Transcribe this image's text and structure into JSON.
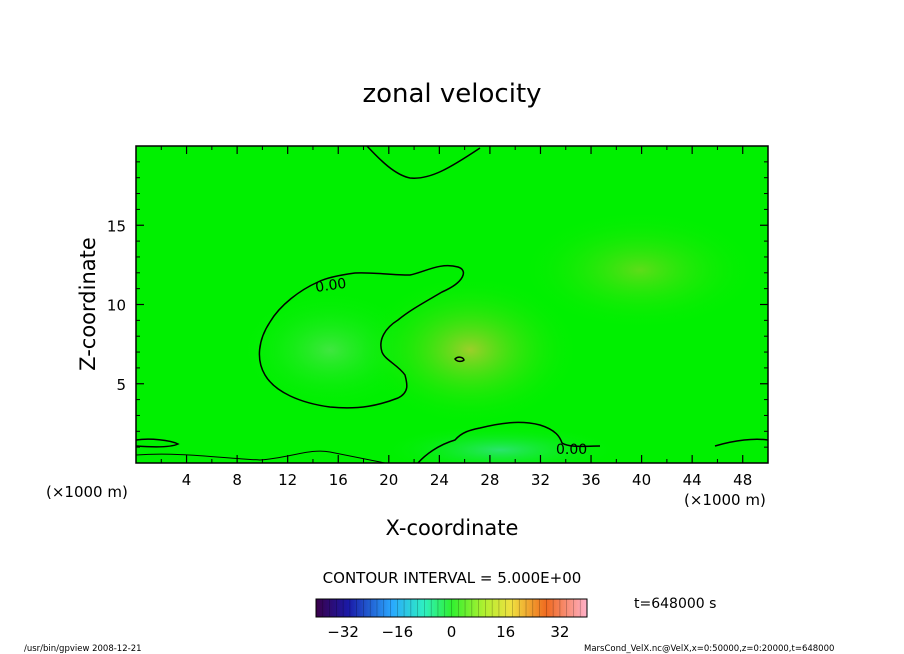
{
  "chart_data": {
    "type": "heatmap",
    "title": "zonal velocity",
    "xlabel": "X-coordinate",
    "ylabel": "Z-coordinate",
    "x_unit_left": "(×1000 m)",
    "x_unit_right": "(×1000 m)",
    "x_ticks": [
      4,
      8,
      12,
      16,
      20,
      24,
      28,
      32,
      36,
      40,
      44,
      48
    ],
    "y_ticks": [
      5,
      10,
      15
    ],
    "xlim": [
      0,
      50
    ],
    "ylim": [
      0,
      20
    ],
    "contour_label": "0.00",
    "contour_interval_text": "CONTOUR INTERVAL = 5.000E+00",
    "time_text": "t=648000 s",
    "colorbar": {
      "range": [
        -40,
        40
      ],
      "ticks": [
        -32,
        -16,
        0,
        16,
        32
      ]
    },
    "field_note": "velocity near 0 everywhere (green)"
  },
  "footer": {
    "left": "/usr/bin/gpview  2008-12-21",
    "right": "MarsCond_VelX.nc@VelX,x=0:50000,z=0:20000,t=648000"
  },
  "colors": {
    "field": "#00f000",
    "contour": "#000000"
  }
}
